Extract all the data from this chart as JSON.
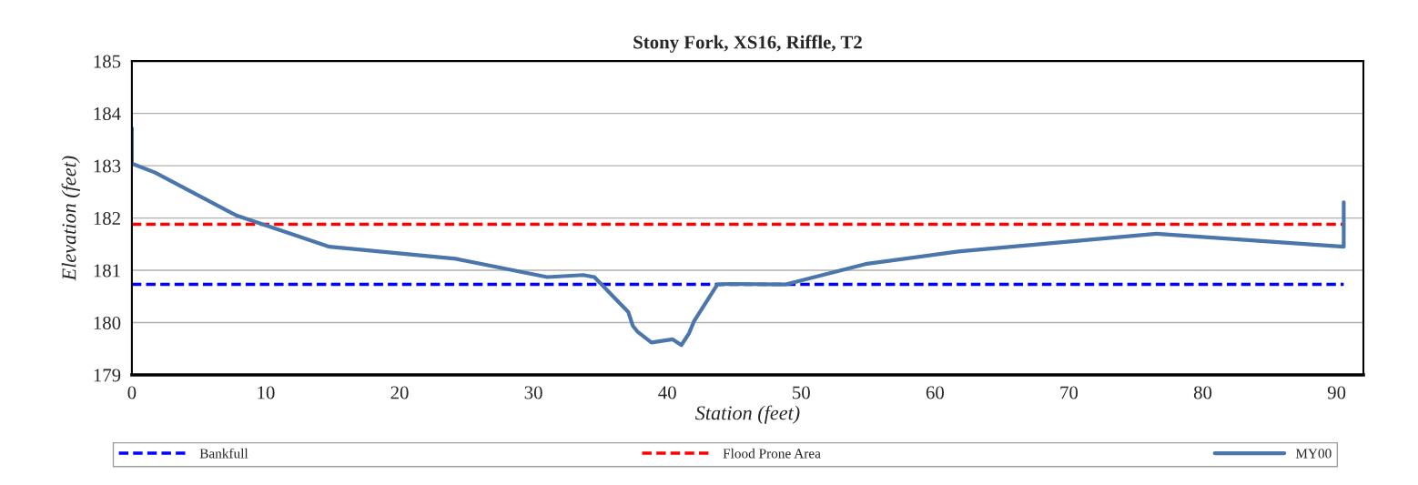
{
  "chart_data": {
    "type": "line",
    "title": "Stony Fork, XS16, Riffle, T2",
    "xlabel": "Station (feet)",
    "ylabel": "Elevation (feet)",
    "xlim": [
      0,
      92
    ],
    "xticks": [
      0,
      10,
      20,
      30,
      40,
      50,
      60,
      70,
      80,
      90
    ],
    "ylim": [
      179,
      185
    ],
    "yticks": [
      179,
      180,
      181,
      182,
      183,
      184,
      185
    ],
    "grid": "y",
    "legend": "bottom",
    "marker": "none",
    "series": [
      {
        "name": "Bankfull",
        "color": "#0000ff",
        "line_style": "dashed",
        "x": [
          0,
          90.53
        ],
        "values": [
          180.73,
          180.73
        ]
      },
      {
        "name": "Flood Prone Area",
        "color": "#ff0000",
        "line_style": "dashed",
        "x": [
          0,
          90.53
        ],
        "values": [
          181.88,
          181.88
        ]
      },
      {
        "name": "MY00",
        "color": "#4a76ab",
        "line_style": "solid",
        "x": [
          0,
          0,
          1.73,
          7.8,
          14.76,
          24.2,
          31.03,
          33.72,
          34.55,
          37.09,
          37.42,
          37.76,
          38.81,
          40.4,
          41.05,
          41.63,
          42.0,
          43.74,
          44.6,
          48.86,
          54.8,
          61.73,
          76.53,
          90.53,
          90.53
        ],
        "values": [
          183.72,
          183.04,
          182.87,
          182.05,
          181.45,
          181.22,
          180.87,
          180.91,
          180.87,
          180.2,
          179.94,
          179.83,
          179.62,
          179.68,
          179.57,
          179.8,
          180.03,
          180.73,
          180.74,
          180.73,
          181.12,
          181.36,
          181.7,
          181.45,
          182.3
        ]
      }
    ]
  }
}
